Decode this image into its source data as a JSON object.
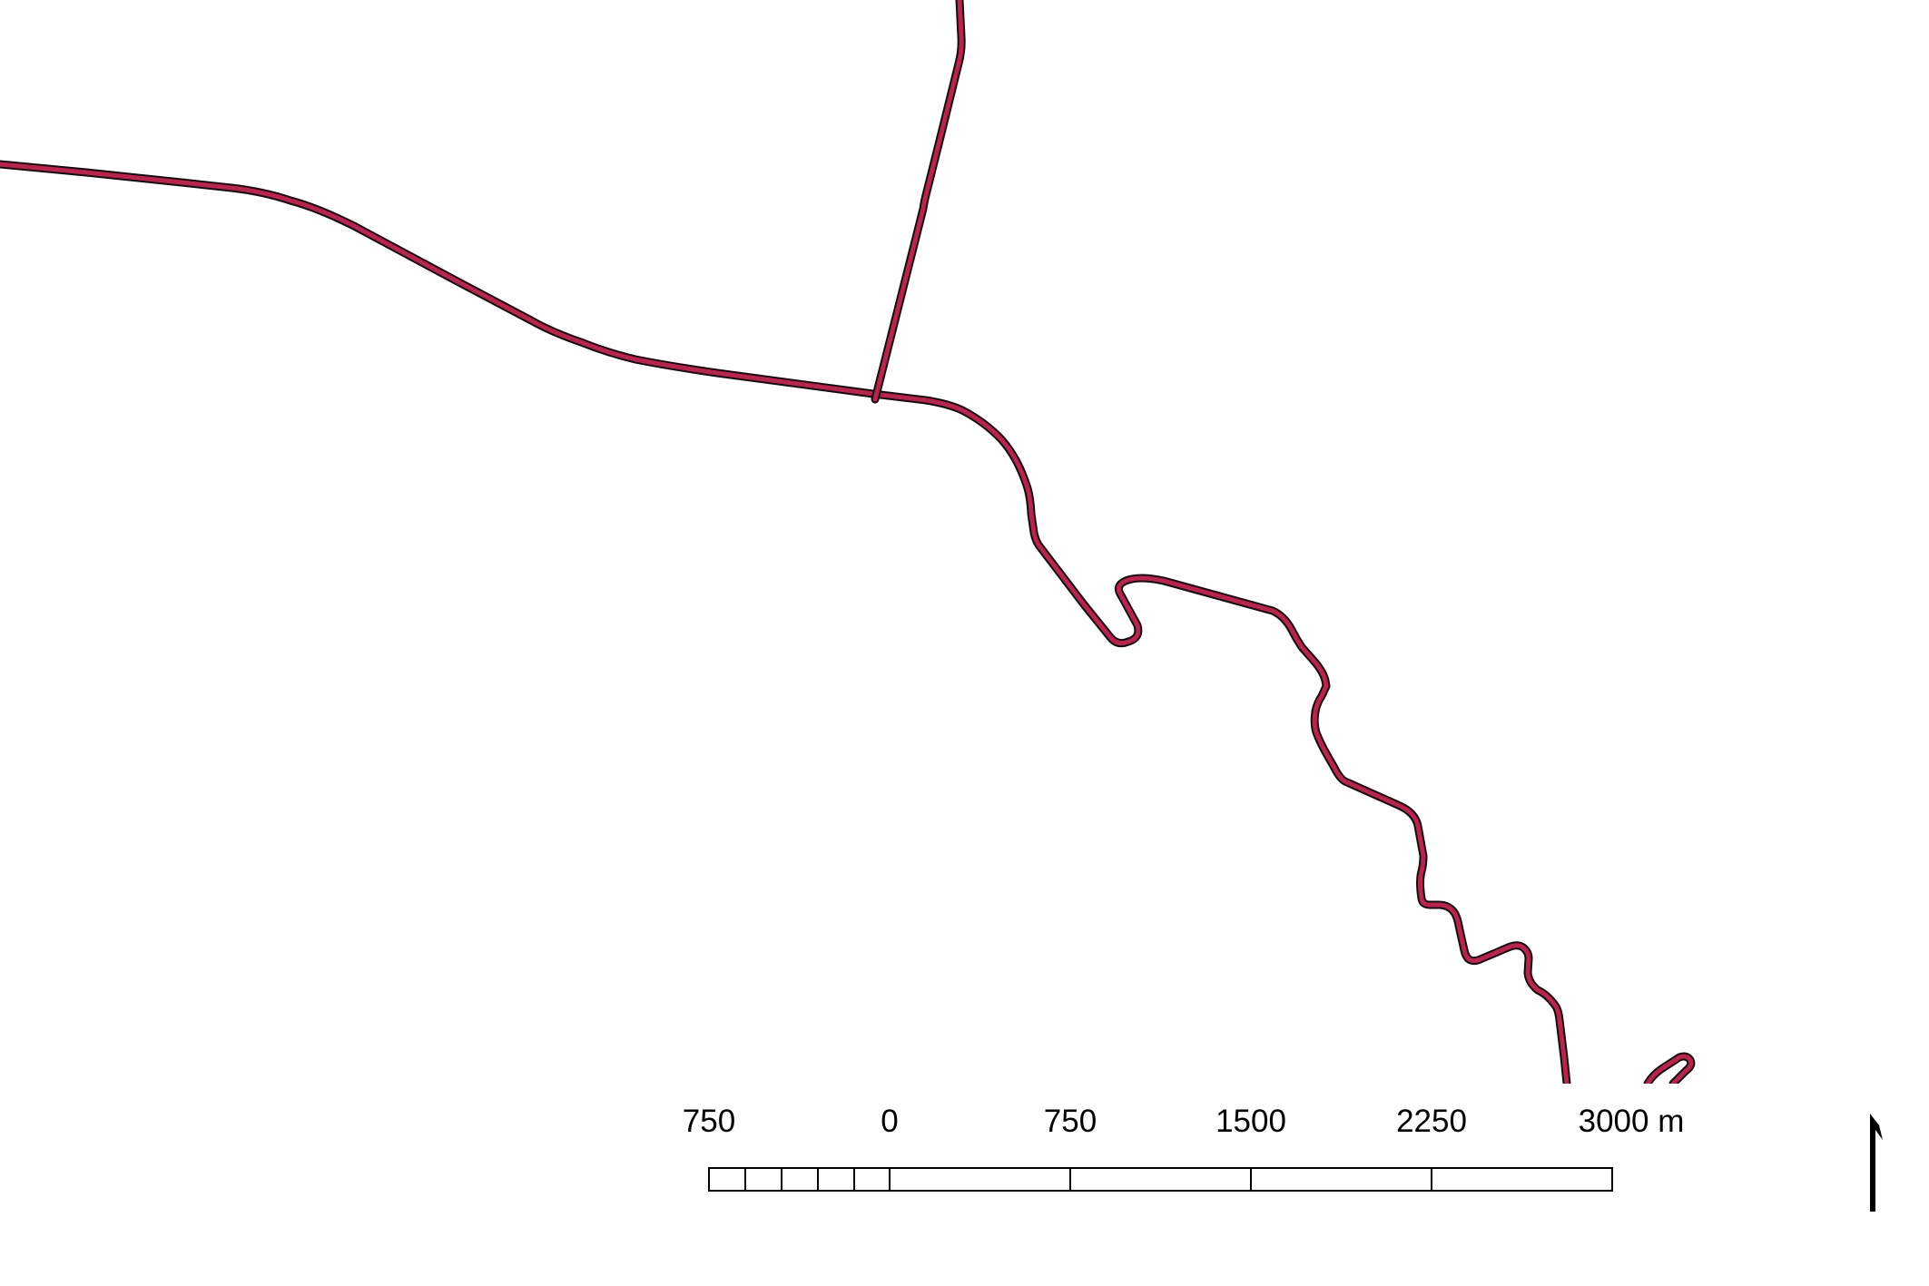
{
  "map": {
    "road_color": "#b5264e",
    "road_outline_color": "#1a0a10"
  },
  "scale_bar": {
    "labels": [
      "750",
      "0",
      "750",
      "1500",
      "2250",
      "3000 m"
    ],
    "left_segment_subdivisions": 5,
    "right_segments": 4
  },
  "north_arrow": {
    "icon": "north-arrow-icon"
  }
}
